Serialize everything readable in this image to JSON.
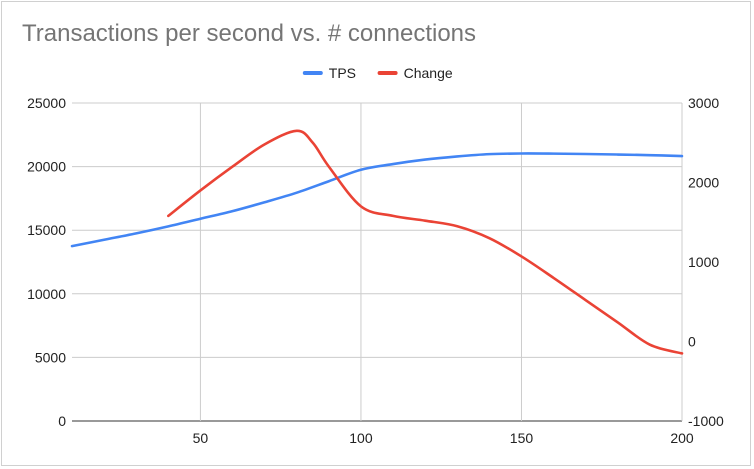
{
  "chart_data": {
    "type": "line",
    "title": "Transactions per second vs. # connections",
    "xlabel": "",
    "ylabel": "",
    "xlim": [
      10,
      200
    ],
    "x_ticks": [
      "50",
      "100",
      "150",
      "200"
    ],
    "ylim_left": [
      0,
      25000
    ],
    "y_ticks_left": [
      "0",
      "5000",
      "10000",
      "15000",
      "20000",
      "25000"
    ],
    "ylim_right": [
      -1000,
      3000
    ],
    "y_ticks_right": [
      "-1000",
      "0",
      "1000",
      "2000",
      "3000"
    ],
    "grid": true,
    "legend_position": "top-center",
    "series": [
      {
        "name": "TPS",
        "axis": "left",
        "color": "#4285f4",
        "x": [
          10,
          20,
          30,
          40,
          50,
          60,
          70,
          80,
          90,
          100,
          110,
          120,
          130,
          140,
          150,
          160,
          170,
          180,
          190,
          200
        ],
        "values": [
          13750,
          14250,
          14750,
          15300,
          15900,
          16500,
          17200,
          17950,
          18850,
          19750,
          20200,
          20550,
          20800,
          20980,
          21030,
          21020,
          20990,
          20950,
          20900,
          20830
        ]
      },
      {
        "name": "Change",
        "axis": "right",
        "color": "#ea4335",
        "x": [
          40,
          50,
          60,
          70,
          80,
          85,
          90,
          100,
          110,
          120,
          130,
          140,
          150,
          160,
          170,
          180,
          190,
          200
        ],
        "values": [
          1580,
          1900,
          2200,
          2480,
          2650,
          2500,
          2200,
          1700,
          1580,
          1520,
          1450,
          1300,
          1070,
          800,
          520,
          240,
          -40,
          -150
        ]
      }
    ]
  }
}
